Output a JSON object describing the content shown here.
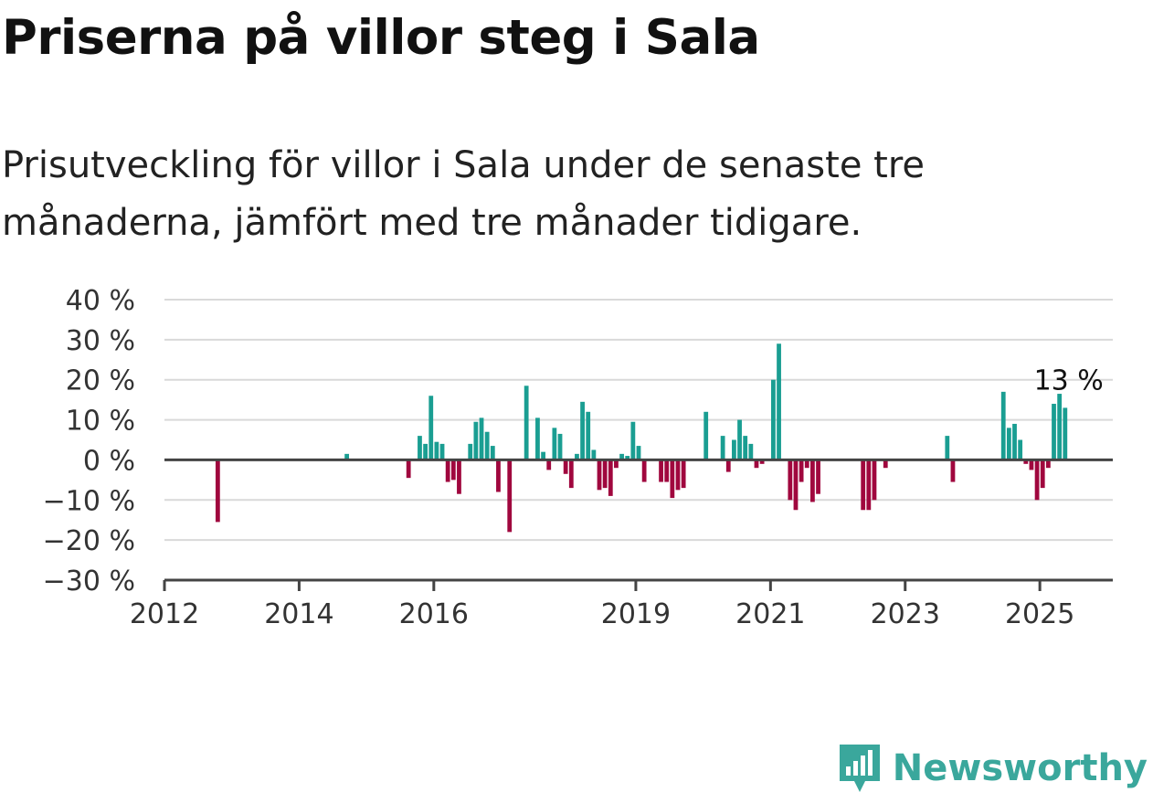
{
  "title": "Priserna på villor steg i Sala",
  "subtitle": "Prisutveckling för villor i Sala under de senaste tre månaderna, jämfört med tre månader tidigare.",
  "logo": {
    "text": "Newsworthy",
    "color": "#3aa79c",
    "icon": "newsworthy-chart-badge-icon"
  },
  "chart_data": {
    "type": "bar",
    "x_ticks": [
      "2012",
      "2014",
      "2016",
      "2019",
      "2021",
      "2023",
      "2025"
    ],
    "y_ticks": [
      "40 %",
      "30 %",
      "20 %",
      "10 %",
      "0 %",
      "−10 %",
      "−20 %",
      "−30 %"
    ],
    "ylim": [
      -30,
      40
    ],
    "xlim": [
      "2012-01",
      "2026-02"
    ],
    "grid": true,
    "colors": {
      "positive": "#1a9e92",
      "negative": "#a0073e",
      "grid": "#d9d9d9",
      "axis": "#444444"
    },
    "annotation": "13 %",
    "series": [
      {
        "values": [
          {
            "x": "2012-10",
            "y": -15.5
          },
          {
            "x": "2014-09",
            "y": 1.5
          },
          {
            "x": "2015-08",
            "y": -4.5
          },
          {
            "x": "2015-10",
            "y": 6
          },
          {
            "x": "2015-11",
            "y": 4
          },
          {
            "x": "2015-12",
            "y": 16
          },
          {
            "x": "2016-01",
            "y": 4.5
          },
          {
            "x": "2016-02",
            "y": 4
          },
          {
            "x": "2016-03",
            "y": -5.5
          },
          {
            "x": "2016-04",
            "y": -5
          },
          {
            "x": "2016-05",
            "y": -8.5
          },
          {
            "x": "2016-07",
            "y": 4
          },
          {
            "x": "2016-08",
            "y": 9.5
          },
          {
            "x": "2016-09",
            "y": 10.5
          },
          {
            "x": "2016-10",
            "y": 7
          },
          {
            "x": "2016-11",
            "y": 3.5
          },
          {
            "x": "2016-12",
            "y": -8
          },
          {
            "x": "2017-02",
            "y": -18
          },
          {
            "x": "2017-05",
            "y": 18.5
          },
          {
            "x": "2017-07",
            "y": 10.5
          },
          {
            "x": "2017-08",
            "y": 2
          },
          {
            "x": "2017-09",
            "y": -2.5
          },
          {
            "x": "2017-10",
            "y": 8
          },
          {
            "x": "2017-11",
            "y": 6.5
          },
          {
            "x": "2017-12",
            "y": -3.5
          },
          {
            "x": "2018-01",
            "y": -7
          },
          {
            "x": "2018-02",
            "y": 1.5
          },
          {
            "x": "2018-03",
            "y": 14.5
          },
          {
            "x": "2018-04",
            "y": 12
          },
          {
            "x": "2018-05",
            "y": 2.5
          },
          {
            "x": "2018-06",
            "y": -7.5
          },
          {
            "x": "2018-07",
            "y": -7
          },
          {
            "x": "2018-08",
            "y": -9
          },
          {
            "x": "2018-09",
            "y": -2
          },
          {
            "x": "2018-10",
            "y": 1.5
          },
          {
            "x": "2018-11",
            "y": 1
          },
          {
            "x": "2018-12",
            "y": 9.5
          },
          {
            "x": "2019-01",
            "y": 3.5
          },
          {
            "x": "2019-02",
            "y": -5.5
          },
          {
            "x": "2019-05",
            "y": -5.5
          },
          {
            "x": "2019-06",
            "y": -5.5
          },
          {
            "x": "2019-07",
            "y": -9.5
          },
          {
            "x": "2019-08",
            "y": -7.5
          },
          {
            "x": "2019-09",
            "y": -7
          },
          {
            "x": "2020-01",
            "y": 12
          },
          {
            "x": "2020-04",
            "y": 6
          },
          {
            "x": "2020-05",
            "y": -3
          },
          {
            "x": "2020-06",
            "y": 5
          },
          {
            "x": "2020-07",
            "y": 10
          },
          {
            "x": "2020-08",
            "y": 6
          },
          {
            "x": "2020-09",
            "y": 4
          },
          {
            "x": "2020-10",
            "y": -2
          },
          {
            "x": "2020-11",
            "y": -1
          },
          {
            "x": "2021-01",
            "y": 20
          },
          {
            "x": "2021-02",
            "y": 29
          },
          {
            "x": "2021-04",
            "y": -10
          },
          {
            "x": "2021-05",
            "y": -12.5
          },
          {
            "x": "2021-06",
            "y": -5.5
          },
          {
            "x": "2021-07",
            "y": -2
          },
          {
            "x": "2021-08",
            "y": -10.5
          },
          {
            "x": "2021-09",
            "y": -8.5
          },
          {
            "x": "2022-05",
            "y": -12.5
          },
          {
            "x": "2022-06",
            "y": -12.5
          },
          {
            "x": "2022-07",
            "y": -10
          },
          {
            "x": "2022-09",
            "y": -2
          },
          {
            "x": "2023-08",
            "y": 6
          },
          {
            "x": "2023-09",
            "y": -5.5
          },
          {
            "x": "2024-06",
            "y": 17
          },
          {
            "x": "2024-07",
            "y": 8
          },
          {
            "x": "2024-08",
            "y": 9
          },
          {
            "x": "2024-09",
            "y": 5
          },
          {
            "x": "2024-10",
            "y": -1
          },
          {
            "x": "2024-11",
            "y": -2.5
          },
          {
            "x": "2024-12",
            "y": -10
          },
          {
            "x": "2025-01",
            "y": -7
          },
          {
            "x": "2025-02",
            "y": -2
          },
          {
            "x": "2025-03",
            "y": 14
          },
          {
            "x": "2025-04",
            "y": 16.5
          },
          {
            "x": "2025-05",
            "y": 13
          }
        ]
      }
    ]
  }
}
